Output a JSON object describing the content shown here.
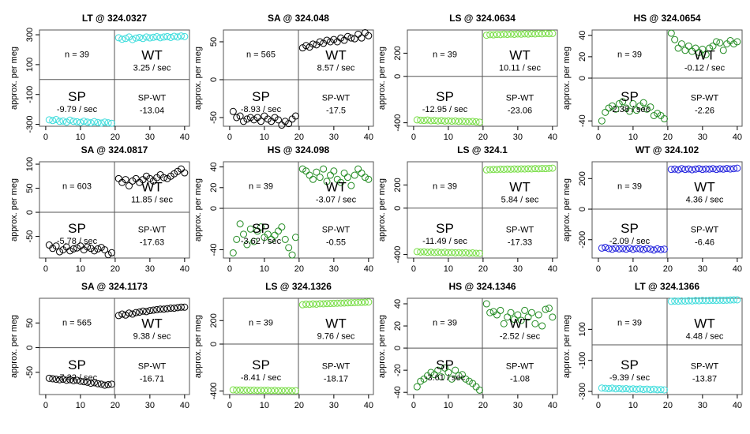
{
  "chart_data": [
    {
      "type": "scatter",
      "title": "LT @ 324.0327",
      "ylabel": "approx. per meg",
      "color": "#3cdcdc",
      "xlim": [
        -1.8,
        41.4
      ],
      "xticks": [
        0,
        10,
        20,
        30,
        40
      ],
      "ylim": [
        -313,
        332
      ],
      "yticks": [
        -300,
        -100,
        100,
        300
      ],
      "x": [
        1,
        2,
        3,
        4,
        5,
        6,
        7,
        8,
        9,
        10,
        11,
        12,
        13,
        14,
        15,
        16,
        17,
        18,
        19,
        21,
        22,
        23,
        24,
        25,
        26,
        27,
        28,
        29,
        30,
        31,
        32,
        33,
        34,
        35,
        36,
        37,
        38,
        39,
        40
      ],
      "values": [
        -270,
        -275,
        -268,
        -280,
        -278,
        -285,
        -272,
        -280,
        -283,
        -287,
        -279,
        -285,
        -290,
        -282,
        -288,
        -292,
        -285,
        -290,
        -293,
        280,
        270,
        275,
        285,
        268,
        278,
        282,
        275,
        285,
        279,
        283,
        287,
        280,
        285,
        288,
        282,
        290,
        285,
        292,
        288
      ],
      "n_label": "n = 39",
      "wt_label": "WT",
      "wt_rate": "3.25 / sec",
      "sp_label": "SP",
      "sp_rate": "-9.79 / sec",
      "diff_label": "SP-WT",
      "diff": -13.04
    },
    {
      "type": "scatter",
      "title": "SA @ 324.048",
      "ylabel": "approx. per meg",
      "color": "#000000",
      "xlim": [
        -1.8,
        41.4
      ],
      "xticks": [
        0,
        10,
        20,
        30,
        40
      ],
      "ylim": [
        -61.5,
        65.6
      ],
      "yticks": [
        -50,
        0,
        50
      ],
      "x": [
        1,
        2,
        3,
        4,
        5,
        6,
        7,
        8,
        9,
        10,
        11,
        12,
        13,
        14,
        15,
        16,
        17,
        18,
        19,
        21,
        22,
        23,
        24,
        25,
        26,
        27,
        28,
        29,
        30,
        31,
        32,
        33,
        34,
        35,
        36,
        37,
        38,
        39,
        40
      ],
      "values": [
        -42,
        -50,
        -48,
        -55,
        -52,
        -50,
        -53,
        -50,
        -55,
        -48,
        -52,
        -55,
        -50,
        -53,
        -60,
        -55,
        -58,
        -52,
        -48,
        42,
        45,
        43,
        47,
        46,
        50,
        48,
        52,
        50,
        53,
        50,
        55,
        52,
        57,
        55,
        54,
        60,
        55,
        62,
        58
      ],
      "n_label": "n = 565",
      "wt_label": "WT",
      "wt_rate": "8.57 / sec",
      "sp_label": "SP",
      "sp_rate": "-8.93 / sec",
      "diff_label": "SP-WT",
      "diff": -17.5
    },
    {
      "type": "scatter",
      "title": "LS @ 324.0634",
      "ylabel": "approx. per meg",
      "color": "#77dd44",
      "xlim": [
        -1.8,
        41.4
      ],
      "xticks": [
        0,
        10,
        20,
        30,
        40
      ],
      "ylim": [
        -430,
        400
      ],
      "yticks": [
        -400,
        0,
        200
      ],
      "x": [
        1,
        2,
        3,
        4,
        5,
        6,
        7,
        8,
        9,
        10,
        11,
        12,
        13,
        14,
        15,
        16,
        17,
        18,
        19,
        21,
        22,
        23,
        24,
        25,
        26,
        27,
        28,
        29,
        30,
        31,
        32,
        33,
        34,
        35,
        36,
        37,
        38,
        39,
        40
      ],
      "values": [
        -375,
        -378,
        -380,
        -376,
        -382,
        -380,
        -384,
        -381,
        -385,
        -383,
        -386,
        -384,
        -388,
        -386,
        -389,
        -390,
        -388,
        -392,
        -395,
        355,
        360,
        358,
        362,
        360,
        364,
        362,
        365,
        363,
        366,
        364,
        367,
        365,
        368,
        366,
        369,
        367,
        370,
        368,
        370
      ],
      "n_label": "n = 39",
      "wt_label": "WT",
      "wt_rate": "10.11 / sec",
      "sp_label": "SP",
      "sp_rate": "-12.95 / sec",
      "diff_label": "SP-WT",
      "diff": -23.06
    },
    {
      "type": "scatter",
      "title": "HS @ 324.0654",
      "ylabel": "approx. per meg",
      "color": "#228b22",
      "xlim": [
        -1.8,
        41.4
      ],
      "xticks": [
        0,
        10,
        20,
        30,
        40
      ],
      "ylim": [
        -45,
        45
      ],
      "yticks": [
        -40,
        0,
        20,
        40
      ],
      "x": [
        1,
        2,
        3,
        4,
        5,
        6,
        7,
        8,
        9,
        10,
        11,
        12,
        13,
        14,
        15,
        16,
        17,
        18,
        19,
        21,
        22,
        23,
        24,
        25,
        26,
        27,
        28,
        29,
        30,
        31,
        32,
        33,
        34,
        35,
        36,
        37,
        38,
        39,
        40
      ],
      "values": [
        -40,
        -32,
        -28,
        -26,
        -29,
        -24,
        -22,
        -28,
        -31,
        -24,
        -30,
        -26,
        -23,
        -29,
        -27,
        -35,
        -33,
        -35,
        -38,
        42,
        36,
        28,
        32,
        26,
        30,
        25,
        28,
        24,
        27,
        22,
        28,
        30,
        34,
        33,
        26,
        32,
        35,
        32,
        34
      ],
      "n_label": "n = 39",
      "wt_label": "WT",
      "wt_rate": "-0.12 / sec",
      "sp_label": "SP",
      "sp_rate": "-2.38 / sec",
      "diff_label": "SP-WT",
      "diff": -2.26
    },
    {
      "type": "scatter",
      "title": "SA @ 324.0817",
      "ylabel": "approx. per meg",
      "color": "#000000",
      "xlim": [
        -1.8,
        41.4
      ],
      "xticks": [
        0,
        10,
        20,
        30,
        40
      ],
      "ylim": [
        -95,
        105
      ],
      "yticks": [
        -50,
        0,
        50,
        100
      ],
      "x": [
        1,
        2,
        3,
        4,
        5,
        6,
        7,
        8,
        9,
        10,
        11,
        12,
        13,
        14,
        15,
        16,
        17,
        18,
        19,
        21,
        22,
        23,
        24,
        25,
        26,
        27,
        28,
        29,
        30,
        31,
        32,
        33,
        34,
        35,
        36,
        37,
        38,
        39,
        40
      ],
      "values": [
        -68,
        -75,
        -70,
        -82,
        -78,
        -72,
        -80,
        -76,
        -74,
        -70,
        -78,
        -72,
        -75,
        -80,
        -76,
        -73,
        -78,
        -88,
        -84,
        70,
        62,
        68,
        55,
        65,
        70,
        62,
        68,
        75,
        70,
        65,
        72,
        78,
        72,
        70,
        75,
        80,
        85,
        90,
        82
      ],
      "n_label": "n = 603",
      "wt_label": "WT",
      "wt_rate": "11.85 / sec",
      "sp_label": "SP",
      "sp_rate": "-5.78 / sec",
      "diff_label": "SP-WT",
      "diff": -17.63
    },
    {
      "type": "scatter",
      "title": "HS @ 324.098",
      "ylabel": "approx. per meg",
      "color": "#228b22",
      "xlim": [
        -1.8,
        41.4
      ],
      "xticks": [
        0,
        10,
        20,
        30,
        40
      ],
      "ylim": [
        -48,
        45
      ],
      "yticks": [
        -40,
        0,
        20,
        40
      ],
      "x": [
        1,
        2,
        3,
        4,
        5,
        6,
        7,
        8,
        9,
        10,
        11,
        12,
        13,
        14,
        15,
        16,
        17,
        18,
        19,
        21,
        22,
        23,
        24,
        25,
        26,
        27,
        28,
        29,
        30,
        31,
        32,
        33,
        34,
        35,
        36,
        37,
        38,
        39,
        40
      ],
      "values": [
        -43,
        -30,
        -15,
        -25,
        -35,
        -20,
        -32,
        -22,
        -18,
        -28,
        -25,
        -30,
        -26,
        -22,
        -18,
        -30,
        -38,
        -45,
        -28,
        38,
        36,
        32,
        28,
        35,
        30,
        38,
        26,
        32,
        36,
        28,
        25,
        34,
        30,
        22,
        32,
        38,
        34,
        30,
        28
      ],
      "n_label": "n = 39",
      "wt_label": "WT",
      "wt_rate": "-3.07 / sec",
      "sp_label": "SP",
      "sp_rate": "-3.62 / sec",
      "diff_label": "SP-WT",
      "diff": -0.55
    },
    {
      "type": "scatter",
      "title": "LS @ 324.1",
      "ylabel": "approx. per meg",
      "color": "#77dd44",
      "xlim": [
        -1.8,
        41.4
      ],
      "xticks": [
        0,
        10,
        20,
        30,
        40
      ],
      "ylim": [
        -430,
        400
      ],
      "yticks": [
        -400,
        0,
        200
      ],
      "x": [
        1,
        2,
        3,
        4,
        5,
        6,
        7,
        8,
        9,
        10,
        11,
        12,
        13,
        14,
        15,
        16,
        17,
        18,
        19,
        21,
        22,
        23,
        24,
        25,
        26,
        27,
        28,
        29,
        30,
        31,
        32,
        33,
        34,
        35,
        36,
        37,
        38,
        39,
        40
      ],
      "values": [
        -375,
        -378,
        -376,
        -380,
        -378,
        -382,
        -379,
        -383,
        -380,
        -384,
        -382,
        -385,
        -383,
        -386,
        -384,
        -388,
        -386,
        -389,
        -390,
        330,
        332,
        334,
        333,
        336,
        335,
        337,
        336,
        338,
        337,
        339,
        338,
        340,
        339,
        341,
        340,
        342,
        341,
        343,
        345
      ],
      "n_label": "n = 39",
      "wt_label": "WT",
      "wt_rate": "5.84 / sec",
      "sp_label": "SP",
      "sp_rate": "-11.49 / sec",
      "diff_label": "SP-WT",
      "diff": -17.33
    },
    {
      "type": "scatter",
      "title": "WT @ 324.102",
      "ylabel": "approx. per meg",
      "color": "#2222dd",
      "xlim": [
        -1.8,
        41.4
      ],
      "xticks": [
        0,
        10,
        20,
        30,
        40
      ],
      "ylim": [
        -320,
        310
      ],
      "yticks": [
        -200,
        0,
        200
      ],
      "x": [
        1,
        2,
        3,
        4,
        5,
        6,
        7,
        8,
        9,
        10,
        11,
        12,
        13,
        14,
        15,
        16,
        17,
        18,
        19,
        21,
        22,
        23,
        24,
        25,
        26,
        27,
        28,
        29,
        30,
        31,
        32,
        33,
        34,
        35,
        36,
        37,
        38,
        39,
        40
      ],
      "values": [
        -255,
        -250,
        -258,
        -262,
        -255,
        -260,
        -258,
        -262,
        -256,
        -263,
        -258,
        -260,
        -265,
        -258,
        -262,
        -268,
        -260,
        -265,
        -262,
        260,
        262,
        258,
        265,
        260,
        263,
        258,
        262,
        265,
        260,
        263,
        262,
        265,
        260,
        264,
        262,
        266,
        263,
        265,
        268
      ],
      "n_label": "n = 39",
      "wt_label": "WT",
      "wt_rate": "4.36 / sec",
      "sp_label": "SP",
      "sp_rate": "-2.09 / sec",
      "diff_label": "SP-WT",
      "diff": -6.46
    },
    {
      "type": "scatter",
      "title": "SA @ 324.1173",
      "ylabel": "approx. per meg",
      "color": "#000000",
      "xlim": [
        -1.8,
        41.4
      ],
      "xticks": [
        0,
        10,
        20,
        30,
        40
      ],
      "ylim": [
        -95,
        100
      ],
      "yticks": [
        -50,
        0,
        50
      ],
      "x": [
        1,
        2,
        3,
        4,
        5,
        6,
        7,
        8,
        9,
        10,
        11,
        12,
        13,
        14,
        15,
        16,
        17,
        18,
        19,
        21,
        22,
        23,
        24,
        25,
        26,
        27,
        28,
        29,
        30,
        31,
        32,
        33,
        34,
        35,
        36,
        37,
        38,
        39,
        40
      ],
      "values": [
        -62,
        -63,
        -64,
        -65,
        -64,
        -66,
        -65,
        -67,
        -66,
        -68,
        -69,
        -70,
        -72,
        -71,
        -73,
        -74,
        -76,
        -75,
        -74,
        65,
        68,
        66,
        70,
        68,
        71,
        72,
        74,
        73,
        75,
        76,
        77,
        78,
        78,
        79,
        80,
        80,
        81,
        82,
        82
      ],
      "n_label": "n = 565",
      "wt_label": "WT",
      "wt_rate": "9.38 / sec",
      "sp_label": "SP",
      "sp_rate": "-7.32 / sec",
      "diff_label": "SP-WT",
      "diff": -16.71
    },
    {
      "type": "scatter",
      "title": "LS @ 324.1326",
      "ylabel": "approx. per meg",
      "color": "#77dd44",
      "xlim": [
        -1.8,
        41.4
      ],
      "xticks": [
        0,
        10,
        20,
        30,
        40
      ],
      "ylim": [
        -430,
        390
      ],
      "yticks": [
        -400,
        0,
        200
      ],
      "x": [
        1,
        2,
        3,
        4,
        5,
        6,
        7,
        8,
        9,
        10,
        11,
        12,
        13,
        14,
        15,
        16,
        17,
        18,
        19,
        21,
        22,
        23,
        24,
        25,
        26,
        27,
        28,
        29,
        30,
        31,
        32,
        33,
        34,
        35,
        36,
        37,
        38,
        39,
        40
      ],
      "values": [
        -390,
        -392,
        -391,
        -393,
        -392,
        -394,
        -393,
        -395,
        -394,
        -395,
        -394,
        -396,
        -395,
        -397,
        -396,
        -397,
        -396,
        -398,
        -397,
        335,
        340,
        338,
        342,
        340,
        344,
        343,
        345,
        346,
        347,
        348,
        349,
        350,
        351,
        352,
        353,
        354,
        355,
        356,
        358
      ],
      "n_label": "n = 39",
      "wt_label": "WT",
      "wt_rate": "9.76 / sec",
      "sp_label": "SP",
      "sp_rate": "-8.41 / sec",
      "diff_label": "SP-WT",
      "diff": -18.17
    },
    {
      "type": "scatter",
      "title": "HS @ 324.1346",
      "ylabel": "approx. per meg",
      "color": "#228b22",
      "xlim": [
        -1.8,
        41.4
      ],
      "xticks": [
        0,
        10,
        20,
        30,
        40
      ],
      "ylim": [
        -42,
        45
      ],
      "yticks": [
        -40,
        -20,
        0,
        20,
        40
      ],
      "x": [
        1,
        2,
        3,
        4,
        5,
        6,
        7,
        8,
        9,
        10,
        11,
        12,
        13,
        14,
        15,
        16,
        17,
        18,
        19,
        21,
        22,
        23,
        24,
        25,
        26,
        27,
        28,
        29,
        30,
        31,
        32,
        33,
        34,
        35,
        36,
        37,
        38,
        39,
        40
      ],
      "values": [
        -35,
        -30,
        -28,
        -25,
        -22,
        -24,
        -20,
        -26,
        -18,
        -22,
        -28,
        -20,
        -25,
        -24,
        -28,
        -30,
        -32,
        -35,
        -38,
        40,
        32,
        33,
        30,
        34,
        22,
        28,
        32,
        26,
        30,
        25,
        34,
        28,
        32,
        22,
        30,
        20,
        35,
        36,
        28
      ],
      "n_label": "n = 39",
      "wt_label": "WT",
      "wt_rate": "-2.52 / sec",
      "sp_label": "SP",
      "sp_rate": "-3.61 / sec",
      "diff_label": "SP-WT",
      "diff": -1.08
    },
    {
      "type": "scatter",
      "title": "LT @ 324.1366",
      "ylabel": "approx. per meg",
      "color": "#3cdcdc",
      "xlim": [
        -1.8,
        41.4
      ],
      "xticks": [
        0,
        10,
        20,
        30,
        40
      ],
      "ylim": [
        -320,
        300
      ],
      "yticks": [
        -300,
        -100,
        100
      ],
      "x": [
        1,
        2,
        3,
        4,
        5,
        6,
        7,
        8,
        9,
        10,
        11,
        12,
        13,
        14,
        15,
        16,
        17,
        18,
        19,
        21,
        22,
        23,
        24,
        25,
        26,
        27,
        28,
        29,
        30,
        31,
        32,
        33,
        34,
        35,
        36,
        37,
        38,
        39,
        40
      ],
      "values": [
        -278,
        -280,
        -282,
        -279,
        -283,
        -281,
        -284,
        -282,
        -285,
        -283,
        -286,
        -284,
        -287,
        -285,
        -288,
        -286,
        -289,
        -288,
        -290,
        280,
        282,
        281,
        283,
        282,
        284,
        283,
        285,
        284,
        286,
        285,
        286,
        287,
        286,
        288,
        287,
        288,
        289,
        290,
        290
      ],
      "n_label": "n = 39",
      "wt_label": "WT",
      "wt_rate": "4.48 / sec",
      "sp_label": "SP",
      "sp_rate": "-9.39 / sec",
      "diff_label": "SP-WT",
      "diff": -13.87
    }
  ]
}
